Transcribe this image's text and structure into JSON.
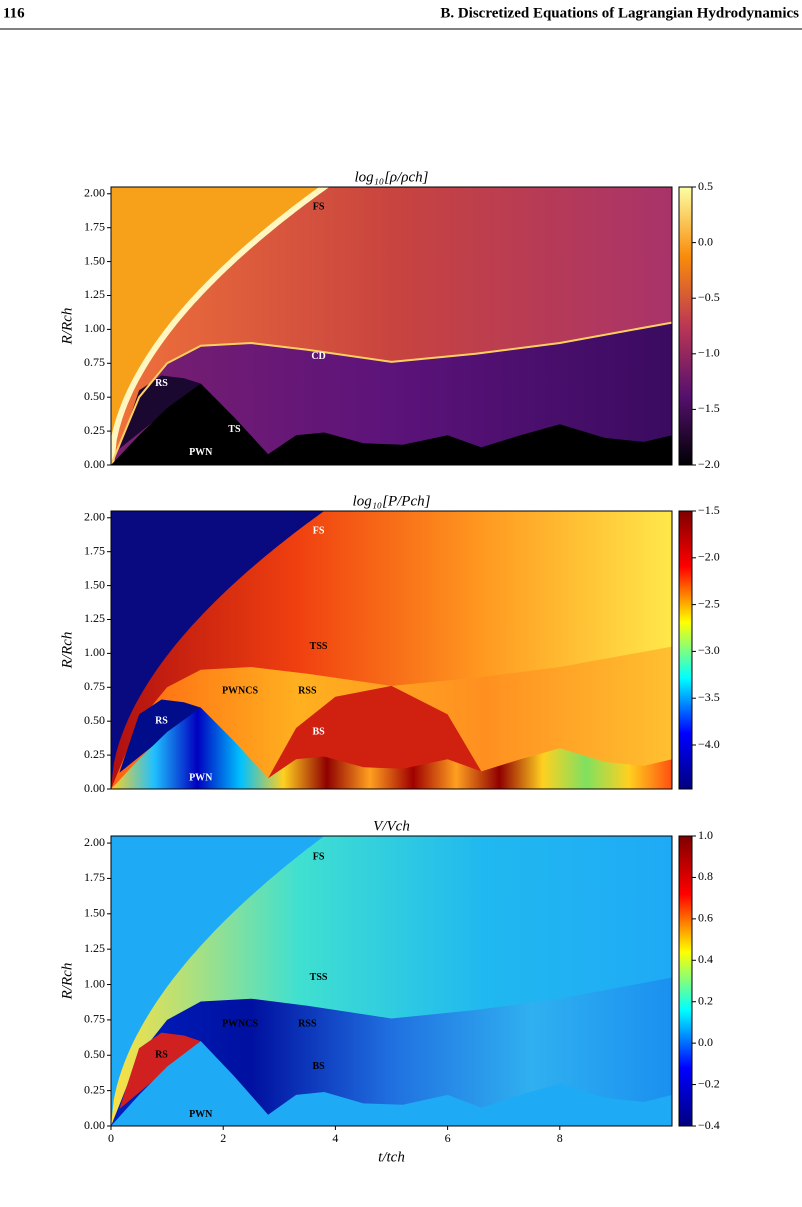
{
  "header": {
    "page": "116",
    "title": "B. Discretized Equations of Lagrangian Hydrodynamics"
  },
  "chart_data": [
    {
      "type": "heatmap",
      "title": "log₁₀[ρ/ρch]",
      "ylabel": "R/Rch",
      "xlim": [
        0,
        10
      ],
      "ylim": [
        0,
        2.05
      ],
      "yticks": [
        {
          "value": 0,
          "label": "0.00"
        },
        0.25,
        {
          "value": 0.5,
          "label": "0.50"
        },
        0.75,
        {
          "value": 1,
          "label": "1.00"
        },
        1.25,
        {
          "value": 1.5,
          "label": "1.50"
        },
        1.75,
        {
          "value": 2,
          "label": "2.00"
        }
      ],
      "colorbar": {
        "lim": [
          -2.0,
          0.5
        ],
        "ticks": [
          0.5,
          {
            "value": 0,
            "label": "0.0"
          },
          {
            "value": -0.5,
            "label": "−0.5"
          },
          {
            "value": -1,
            "label": "−1.0"
          },
          {
            "value": -1.5,
            "label": "−1.5"
          },
          {
            "value": -2,
            "label": "−2.0"
          }
        ],
        "colors": [
          "#000004",
          "#56106e",
          "#bb3754",
          "#f98c0a",
          "#fcffa4"
        ]
      },
      "annotations": [
        {
          "text": "FS",
          "color": "#000000"
        },
        {
          "text": "CD",
          "color": "#ffffff"
        },
        {
          "text": "RS",
          "color": "#ffffff"
        },
        {
          "text": "TS",
          "color": "#ffffff"
        },
        {
          "text": "PWN",
          "color": "#ffffff"
        }
      ]
    },
    {
      "type": "heatmap",
      "title": "log₁₀[P/Pch]",
      "ylabel": "R/Rch",
      "xlim": [
        0,
        10
      ],
      "ylim": [
        0,
        2.05
      ],
      "yticks": [
        {
          "value": 0,
          "label": "0.00"
        },
        0.25,
        {
          "value": 0.5,
          "label": "0.50"
        },
        0.75,
        {
          "value": 1,
          "label": "1.00"
        },
        1.25,
        {
          "value": 1.5,
          "label": "1.50"
        },
        1.75,
        {
          "value": 2,
          "label": "2.00"
        }
      ],
      "colorbar": {
        "lim": [
          -4.47,
          -1.5
        ],
        "ticks": [
          {
            "value": -1.5,
            "label": "−1.5"
          },
          {
            "value": -2,
            "label": "−2.0"
          },
          {
            "value": -2.5,
            "label": "−2.5"
          },
          {
            "value": -3,
            "label": "−3.0"
          },
          {
            "value": -3.5,
            "label": "−3.5"
          },
          {
            "value": -4,
            "label": "−4.0"
          }
        ],
        "colors": [
          "#00007f",
          "#0000ff",
          "#00ffff",
          "#ffff00",
          "#ff0000",
          "#7f0000"
        ]
      },
      "annotations": [
        {
          "text": "FS",
          "color": "#ffffff"
        },
        {
          "text": "TSS",
          "color": "#000000"
        },
        {
          "text": "PWNCS",
          "color": "#000000"
        },
        {
          "text": "RSS",
          "color": "#000000"
        },
        {
          "text": "RS",
          "color": "#ffffff"
        },
        {
          "text": "BS",
          "color": "#ffffff"
        },
        {
          "text": "PWN",
          "color": "#ffffff"
        }
      ]
    },
    {
      "type": "heatmap",
      "title": "V/Vch",
      "ylabel": "R/Rch",
      "xlabel": "t/tch",
      "xlim": [
        0,
        10
      ],
      "ylim": [
        0,
        2.05
      ],
      "xticks": [
        0,
        2,
        4,
        6,
        8
      ],
      "yticks": [
        {
          "value": 0,
          "label": "0.00"
        },
        0.25,
        {
          "value": 0.5,
          "label": "0.50"
        },
        0.75,
        {
          "value": 1,
          "label": "1.00"
        },
        1.25,
        {
          "value": 1.5,
          "label": "1.50"
        },
        1.75,
        {
          "value": 2,
          "label": "2.00"
        }
      ],
      "colorbar": {
        "lim": [
          -0.4,
          1.0
        ],
        "ticks": [
          {
            "value": 1,
            "label": "1.0"
          },
          0.8,
          0.6,
          0.4,
          0.2,
          {
            "value": 0,
            "label": "0.0"
          },
          {
            "value": -0.2,
            "label": "−0.2"
          },
          {
            "value": -0.4,
            "label": "−0.4"
          }
        ],
        "colors": [
          "#00007f",
          "#0000ff",
          "#00ffff",
          "#ffff00",
          "#ff0000",
          "#7f0000"
        ]
      },
      "annotations": [
        {
          "text": "FS",
          "color": "#000000"
        },
        {
          "text": "TSS",
          "color": "#000000"
        },
        {
          "text": "PWNCS",
          "color": "#000000"
        },
        {
          "text": "RSS",
          "color": "#000000"
        },
        {
          "text": "RS",
          "color": "#000000"
        },
        {
          "text": "BS",
          "color": "#000000"
        },
        {
          "text": "PWN",
          "color": "#000000"
        }
      ]
    }
  ]
}
